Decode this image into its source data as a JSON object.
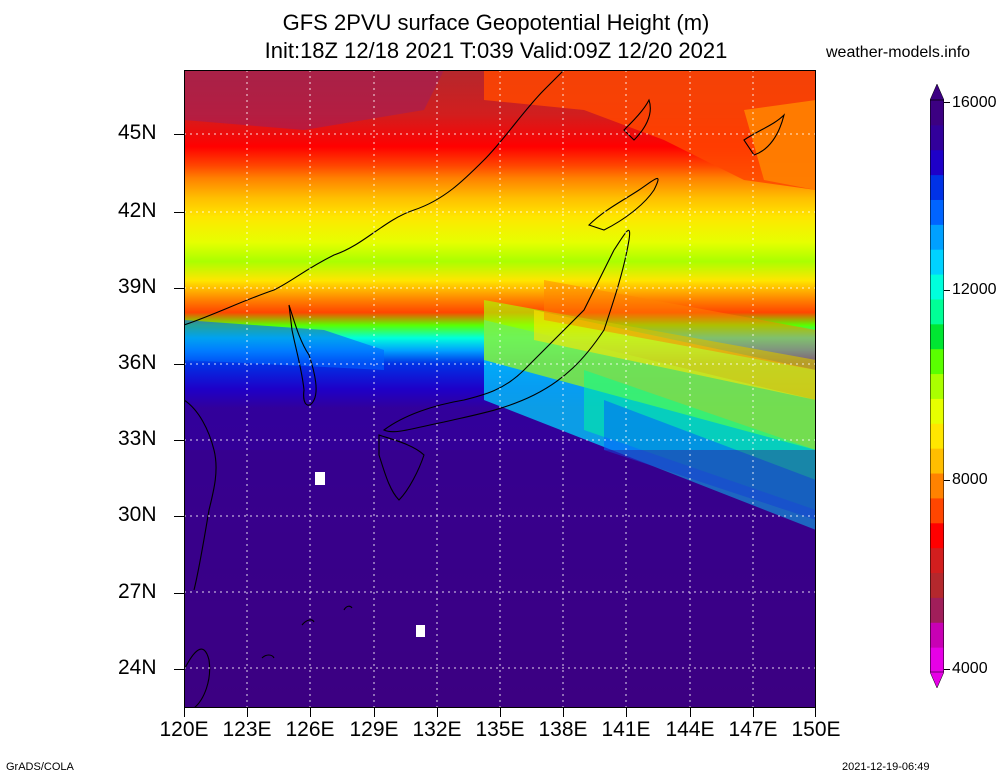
{
  "title": {
    "line1": "GFS 2PVU surface Geopotential Height (m)",
    "line2": "Init:18Z 12/18 2021 T:039 Valid:09Z 12/20 2021"
  },
  "site": "weather-models.info",
  "lat_labels": [
    "45N",
    "42N",
    "39N",
    "36N",
    "33N",
    "30N",
    "27N",
    "24N"
  ],
  "lon_labels": [
    "120E",
    "123E",
    "126E",
    "129E",
    "132E",
    "135E",
    "138E",
    "141E",
    "144E",
    "147E",
    "150E"
  ],
  "map_extent": {
    "lon_min": 120,
    "lon_max": 150,
    "lat_min": 22.5,
    "lat_max": 46.8
  },
  "colorbar": {
    "labels": [
      "16000",
      "12000",
      "8000",
      "4000"
    ],
    "min": 4000,
    "max": 16000,
    "colors": [
      "#e600e6",
      "#c800b4",
      "#a01e5a",
      "#b4282d",
      "#d21e1e",
      "#ff0000",
      "#ff4600",
      "#ff8200",
      "#ffbe00",
      "#ffe600",
      "#e6ff00",
      "#aaff00",
      "#5aff00",
      "#00e632",
      "#00ff96",
      "#00ffdc",
      "#00d2ff",
      "#00a0ff",
      "#0064ff",
      "#0032e6",
      "#1e00c8",
      "#32009b",
      "#3c0082"
    ]
  },
  "footer": {
    "left": "GrADS/COLA",
    "right": "2021-12-19-06:49"
  }
}
